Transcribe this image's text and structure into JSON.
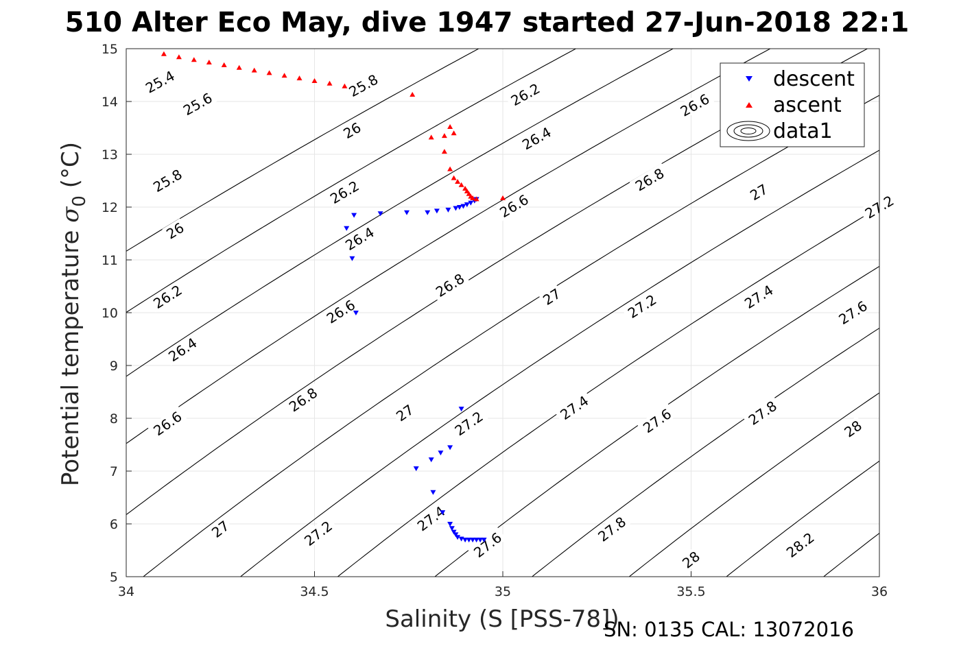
{
  "chart_data": {
    "type": "scatter",
    "title": "510 Alter Eco May, dive 1947 started 27-Jun-2018 22:1",
    "xlabel": "Salinity (S [PSS-78])",
    "ylabel_main": "Potential temperature ",
    "ylabel_symbol": "σ",
    "ylabel_sub": "0",
    "ylabel_unit": " (°C)",
    "footer": "SN: 0135  CAL: 13072016",
    "xlim": [
      34,
      36
    ],
    "ylim": [
      5,
      15
    ],
    "grid": true,
    "legend_position": "top-right",
    "xticks": [
      "34",
      "34.5",
      "35",
      "35.5",
      "36"
    ],
    "yticks": [
      "5",
      "6",
      "7",
      "8",
      "9",
      "10",
      "11",
      "12",
      "13",
      "14",
      "15"
    ],
    "series": [
      {
        "name": "descent",
        "marker": "triangle-down",
        "color": "#0000ff",
        "points": [
          [
            34.605,
            11.85
          ],
          [
            34.585,
            11.6
          ],
          [
            34.6,
            11.03
          ],
          [
            34.61,
            10.0
          ],
          [
            34.675,
            11.88
          ],
          [
            34.745,
            11.9
          ],
          [
            34.8,
            11.9
          ],
          [
            34.825,
            11.93
          ],
          [
            34.855,
            11.95
          ],
          [
            34.875,
            11.98
          ],
          [
            34.885,
            12.0
          ],
          [
            34.895,
            12.02
          ],
          [
            34.905,
            12.05
          ],
          [
            34.915,
            12.08
          ],
          [
            34.925,
            12.12
          ],
          [
            34.93,
            12.15
          ],
          [
            34.89,
            8.18
          ],
          [
            34.86,
            7.45
          ],
          [
            34.835,
            7.35
          ],
          [
            34.81,
            7.22
          ],
          [
            34.77,
            7.05
          ],
          [
            34.815,
            6.6
          ],
          [
            34.84,
            6.22
          ],
          [
            34.86,
            6.0
          ],
          [
            34.865,
            5.92
          ],
          [
            34.87,
            5.85
          ],
          [
            34.875,
            5.8
          ],
          [
            34.88,
            5.75
          ],
          [
            34.89,
            5.72
          ],
          [
            34.9,
            5.7
          ],
          [
            34.91,
            5.7
          ],
          [
            34.92,
            5.7
          ],
          [
            34.93,
            5.7
          ],
          [
            34.94,
            5.7
          ],
          [
            34.95,
            5.7
          ]
        ]
      },
      {
        "name": "ascent",
        "marker": "triangle-up",
        "color": "#ff0000",
        "points": [
          [
            34.1,
            14.9
          ],
          [
            34.14,
            14.84
          ],
          [
            34.18,
            14.79
          ],
          [
            34.22,
            14.74
          ],
          [
            34.26,
            14.69
          ],
          [
            34.3,
            14.64
          ],
          [
            34.34,
            14.59
          ],
          [
            34.38,
            14.54
          ],
          [
            34.42,
            14.49
          ],
          [
            34.46,
            14.44
          ],
          [
            34.5,
            14.39
          ],
          [
            34.54,
            14.34
          ],
          [
            34.58,
            14.29
          ],
          [
            34.76,
            14.13
          ],
          [
            34.86,
            13.52
          ],
          [
            34.87,
            13.4
          ],
          [
            34.81,
            13.32
          ],
          [
            34.845,
            13.35
          ],
          [
            34.845,
            13.05
          ],
          [
            34.86,
            12.72
          ],
          [
            34.87,
            12.55
          ],
          [
            34.88,
            12.48
          ],
          [
            34.89,
            12.42
          ],
          [
            34.9,
            12.35
          ],
          [
            34.905,
            12.3
          ],
          [
            34.91,
            12.25
          ],
          [
            34.915,
            12.2
          ],
          [
            34.92,
            12.17
          ],
          [
            34.93,
            12.15
          ],
          [
            35.0,
            12.17
          ]
        ]
      },
      {
        "name": "data1",
        "type": "contour",
        "color": "#000000",
        "quantity": "sigma0 potential density anomaly",
        "levels": [
          "25.4",
          "25.6",
          "25.8",
          "26",
          "26.2",
          "26.4",
          "26.6",
          "26.8",
          "27",
          "27.2",
          "27.4",
          "27.6",
          "27.8",
          "28",
          "28.2"
        ]
      }
    ],
    "contour_labels": [
      {
        "text": "25.4",
        "s": 34.09,
        "t": 14.37
      },
      {
        "text": "25.8",
        "s": 34.63,
        "t": 14.3
      },
      {
        "text": "25.6",
        "s": 34.19,
        "t": 13.95
      },
      {
        "text": "26",
        "s": 34.6,
        "t": 13.45
      },
      {
        "text": "26.2",
        "s": 35.06,
        "t": 14.13
      },
      {
        "text": "26.6",
        "s": 35.51,
        "t": 13.93
      },
      {
        "text": "26.4",
        "s": 35.09,
        "t": 13.3
      },
      {
        "text": "25.8",
        "s": 34.11,
        "t": 12.5
      },
      {
        "text": "26.2",
        "s": 34.58,
        "t": 12.28
      },
      {
        "text": "26.8",
        "s": 35.39,
        "t": 12.52
      },
      {
        "text": "27",
        "s": 35.68,
        "t": 12.28
      },
      {
        "text": "26.6",
        "s": 35.03,
        "t": 12.02
      },
      {
        "text": "27.2",
        "s": 36.0,
        "t": 12.0
      },
      {
        "text": "26",
        "s": 34.13,
        "t": 11.55
      },
      {
        "text": "26.4",
        "s": 34.62,
        "t": 11.4
      },
      {
        "text": "26.8",
        "s": 34.86,
        "t": 10.52
      },
      {
        "text": "27",
        "s": 35.13,
        "t": 10.3
      },
      {
        "text": "27.2",
        "s": 35.37,
        "t": 10.12
      },
      {
        "text": "27.4",
        "s": 35.68,
        "t": 10.3
      },
      {
        "text": "27.6",
        "s": 35.93,
        "t": 10.0
      },
      {
        "text": "26.2",
        "s": 34.11,
        "t": 10.3
      },
      {
        "text": "26.6",
        "s": 34.57,
        "t": 10.02
      },
      {
        "text": "26.4",
        "s": 34.15,
        "t": 9.3
      },
      {
        "text": "26.8",
        "s": 34.47,
        "t": 8.35
      },
      {
        "text": "27",
        "s": 34.74,
        "t": 8.1
      },
      {
        "text": "27.2",
        "s": 34.91,
        "t": 7.9
      },
      {
        "text": "27.4",
        "s": 35.19,
        "t": 8.2
      },
      {
        "text": "27.6",
        "s": 35.41,
        "t": 7.95
      },
      {
        "text": "27.8",
        "s": 35.69,
        "t": 8.1
      },
      {
        "text": "28",
        "s": 35.93,
        "t": 7.8
      },
      {
        "text": "26.6",
        "s": 34.11,
        "t": 7.9
      },
      {
        "text": "27",
        "s": 34.25,
        "t": 5.9
      },
      {
        "text": "27.2",
        "s": 34.51,
        "t": 5.82
      },
      {
        "text": "27.4",
        "s": 34.81,
        "t": 6.1
      },
      {
        "text": "27.6",
        "s": 34.96,
        "t": 5.6
      },
      {
        "text": "27.8",
        "s": 35.29,
        "t": 5.9
      },
      {
        "text": "28",
        "s": 35.5,
        "t": 5.32
      },
      {
        "text": "28.2",
        "s": 35.79,
        "t": 5.6
      }
    ]
  }
}
